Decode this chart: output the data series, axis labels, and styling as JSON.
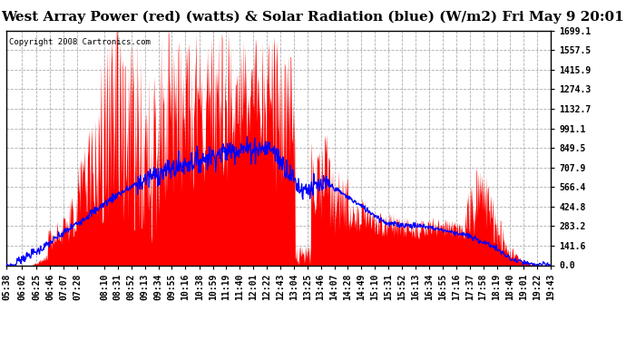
{
  "title": "West Array Power (red) (watts) & Solar Radiation (blue) (W/m2) Fri May 9 20:01",
  "copyright_text": "Copyright 2008 Cartronics.com",
  "ymin": 0.0,
  "ymax": 1699.1,
  "yticks": [
    0.0,
    141.6,
    283.2,
    424.8,
    566.4,
    707.9,
    849.5,
    991.1,
    1132.7,
    1274.3,
    1415.9,
    1557.5,
    1699.1
  ],
  "ytick_labels": [
    "0.0",
    "141.6",
    "283.2",
    "424.8",
    "566.4",
    "707.9",
    "849.5",
    "991.1",
    "1132.7",
    "1274.3",
    "1415.9",
    "1557.5",
    "1699.1"
  ],
  "xtick_labels": [
    "05:38",
    "06:02",
    "06:25",
    "06:46",
    "07:07",
    "07:28",
    "08:10",
    "08:31",
    "08:52",
    "09:13",
    "09:34",
    "09:55",
    "10:16",
    "10:38",
    "10:59",
    "11:19",
    "11:40",
    "12:01",
    "12:22",
    "12:43",
    "13:04",
    "13:25",
    "13:46",
    "14:07",
    "14:28",
    "14:49",
    "15:10",
    "15:31",
    "15:52",
    "16:13",
    "16:34",
    "16:55",
    "17:16",
    "17:37",
    "17:58",
    "18:19",
    "18:40",
    "19:01",
    "19:22",
    "19:43"
  ],
  "background_color": "#ffffff",
  "plot_bg_color": "#ffffff",
  "grid_color": "#999999",
  "red_color": "#ff0000",
  "blue_color": "#0000ff",
  "title_fontsize": 11,
  "tick_fontsize": 7,
  "copyright_fontsize": 6.5
}
